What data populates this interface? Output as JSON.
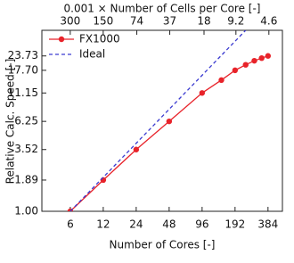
{
  "chart_data": {
    "type": "line",
    "x_label": "Number of Cores [-]",
    "y_label": "Relative Calc. Speed [-]",
    "x2_label": "0.001 × Number of Cells per Core [-]",
    "log_x": true,
    "log_y": true,
    "xlim": [
      3.3,
      520
    ],
    "xticks": [
      6,
      12,
      24,
      48,
      96,
      192,
      384
    ],
    "x2lim": [
      545,
      3.46
    ],
    "x2ticks": [
      300,
      150,
      74,
      37,
      18,
      9.2,
      4.6
    ],
    "ylim": [
      1,
      40
    ],
    "yticks": [
      {
        "value": 1,
        "label": "1.00"
      },
      {
        "value": 1.89,
        "label": "1.89"
      },
      {
        "value": 3.52,
        "label": "3.52"
      },
      {
        "value": 6.25,
        "label": "6.25"
      },
      {
        "value": 11.15,
        "label": "11.15"
      },
      {
        "value": 17.7,
        "label": "17.70"
      },
      {
        "value": 23.73,
        "label": "23.73"
      }
    ],
    "legend": "upper left",
    "series": [
      {
        "name": "FX1000",
        "color": "#e8232a",
        "dash": false,
        "markers": true,
        "x": [
          6,
          12,
          24,
          48,
          96,
          144,
          192,
          240,
          288,
          336,
          384
        ],
        "values": [
          1,
          1.89,
          3.52,
          6.25,
          11.15,
          14.5,
          17.7,
          19.8,
          21.5,
          22.7,
          23.73
        ]
      },
      {
        "name": "Ideal",
        "color": "#3a3ad0",
        "dash": true,
        "markers": false,
        "x": [
          6,
          240
        ],
        "values": [
          1,
          40
        ]
      }
    ]
  }
}
